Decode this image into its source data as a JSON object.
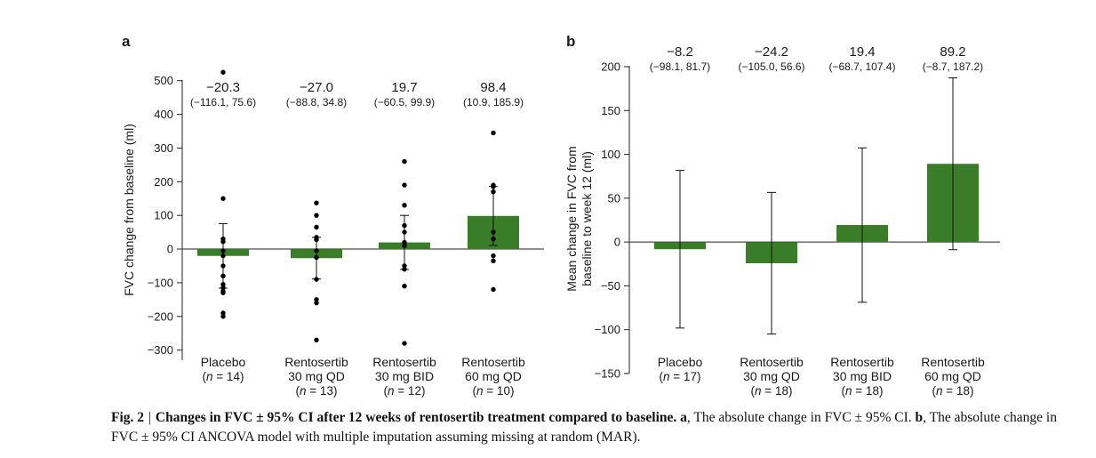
{
  "figure": {
    "caption": {
      "figure_number": "Fig. 2",
      "separator": "|",
      "title": "Changes in FVC  ±  95% CI after 12 weeks of rentosertib treatment compared to baseline.",
      "part_a_label": "a",
      "part_a_text": ", The absolute change in FVC ± 95% CI.",
      "part_b_label": "b",
      "part_b_text": ", The absolute change in FVC ± 95% CI ANCOVA model with multiple imputation assuming missing at random (MAR)."
    }
  },
  "chart_data": [
    {
      "panel": "a",
      "type": "bar",
      "title": "",
      "xlabel": "",
      "ylabel": "FVC change from baseline (ml)",
      "ylim": [
        -330,
        560
      ],
      "yticks": [
        500,
        400,
        300,
        200,
        100,
        0,
        -100,
        -200,
        -300
      ],
      "ytick_labels": [
        "500",
        "400",
        "300",
        "200",
        "100",
        "0",
        "−100",
        "−200",
        "−300"
      ],
      "bar_color": "#3a7d28",
      "categories": [
        {
          "line1": "Placebo",
          "line2": "",
          "n": "(n = 14)"
        },
        {
          "line1": "Rentosertib",
          "line2": "30 mg QD",
          "n": "(n = 13)"
        },
        {
          "line1": "Rentosertib",
          "line2": "30 mg BID",
          "n": "(n = 12)"
        },
        {
          "line1": "Rentosertib",
          "line2": "60 mg QD",
          "n": "(n = 10)"
        }
      ],
      "values": [
        -20.3,
        -27.0,
        19.7,
        98.4
      ],
      "ci": [
        [
          -116.1,
          75.6
        ],
        [
          -88.8,
          34.8
        ],
        [
          -60.5,
          99.9
        ],
        [
          10.9,
          185.9
        ]
      ],
      "value_labels": [
        "−20.3",
        "−27.0",
        "19.7",
        "98.4"
      ],
      "ci_labels": [
        "(−116.1, 75.6)",
        "(−88.8, 34.8)",
        "(−60.5, 99.9)",
        "(10.9, 185.9)"
      ],
      "points": [
        [
          525,
          150,
          30,
          22,
          -5,
          -20,
          -50,
          -80,
          -105,
          -115,
          -125,
          -130,
          -190,
          -200
        ],
        [
          137,
          100,
          65,
          35,
          28,
          -5,
          -25,
          -90,
          -150,
          -160,
          -270
        ],
        [
          260,
          190,
          130,
          70,
          50,
          20,
          10,
          -50,
          -60,
          -110,
          -280
        ],
        [
          345,
          190,
          185,
          170,
          50,
          30,
          -20,
          -35,
          -120
        ]
      ],
      "show_error_bars": true
    },
    {
      "panel": "b",
      "type": "bar",
      "title": "",
      "xlabel": "",
      "ylabel_line1": "Mean change in FVC from",
      "ylabel_line2": "baseline to week 12 (ml)",
      "ylim": [
        -150,
        200
      ],
      "yticks": [
        200,
        150,
        100,
        50,
        0,
        -50,
        -100,
        -150
      ],
      "ytick_labels": [
        "200",
        "150",
        "100",
        "50",
        "0",
        "−50",
        "−100",
        "−150"
      ],
      "bar_color": "#3a7d28",
      "categories": [
        {
          "line1": "Placebo",
          "line2": "",
          "n": "(n = 17)"
        },
        {
          "line1": "Rentosertib",
          "line2": "30 mg QD",
          "n": "(n = 18)"
        },
        {
          "line1": "Rentosertib",
          "line2": "30 mg BID",
          "n": "(n = 18)"
        },
        {
          "line1": "Rentosertib",
          "line2": "60 mg QD",
          "n": "(n = 18)"
        }
      ],
      "values": [
        -8.2,
        -24.2,
        19.4,
        89.2
      ],
      "ci": [
        [
          -98.1,
          81.7
        ],
        [
          -105.0,
          56.6
        ],
        [
          -68.7,
          107.4
        ],
        [
          -8.7,
          187.2
        ]
      ],
      "value_labels": [
        "−8.2",
        "−24.2",
        "19.4",
        "89.2"
      ],
      "ci_labels": [
        "(−98.1, 81.7)",
        "(−105.0, 56.6)",
        "(−68.7, 107.4)",
        "(−8.7, 187.2)"
      ],
      "points": [],
      "show_error_bars": true
    }
  ]
}
